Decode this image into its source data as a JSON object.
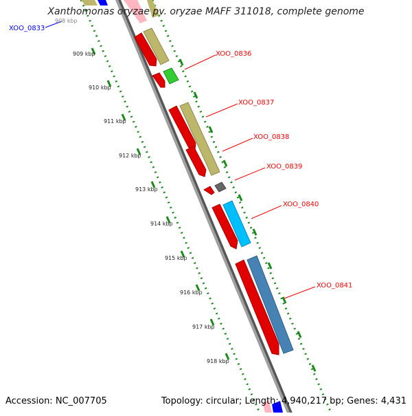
{
  "title": "Xanthomonas oryzae pv. oryzae MAFF 311018, complete genome",
  "footer": {
    "accession": "Accession: NC_007705",
    "summary": "Topology: circular; Length: 4,940,217 bp; Genes: 4,431"
  },
  "colors": {
    "backbone": "#8c8c8c",
    "ticks": "#1a8a1a",
    "red_gene": "#ff0000",
    "khaki_gene": "#bdb76b",
    "green_gene": "#33cc33",
    "grey_gene": "#666666",
    "cyan_gene": "#00bfff",
    "steel_gene": "#4682b4",
    "blue_gene": "#0000ff",
    "pink_gene": "#ffb6c1",
    "label_red": "#ff0000",
    "label_blue": "#0000ff"
  },
  "ruler": {
    "kbp_labels": [
      "909 kbp",
      "910 kbp",
      "911 kbp",
      "912 kbp",
      "913 kbp",
      "914 kbp",
      "915 kbp",
      "916 kbp",
      "917 kbp",
      "918 kbp"
    ],
    "clipped_label": "908 kbp"
  },
  "gene_labels": [
    {
      "text": "XOO_0833",
      "color": "blue"
    },
    {
      "text": "XOO_0836",
      "color": "red"
    },
    {
      "text": "XOO_0837",
      "color": "red"
    },
    {
      "text": "XOO_0838",
      "color": "red"
    },
    {
      "text": "XOO_0839",
      "color": "red"
    },
    {
      "text": "XOO_0840",
      "color": "red"
    },
    {
      "text": "XOO_0841",
      "color": "red"
    }
  ]
}
